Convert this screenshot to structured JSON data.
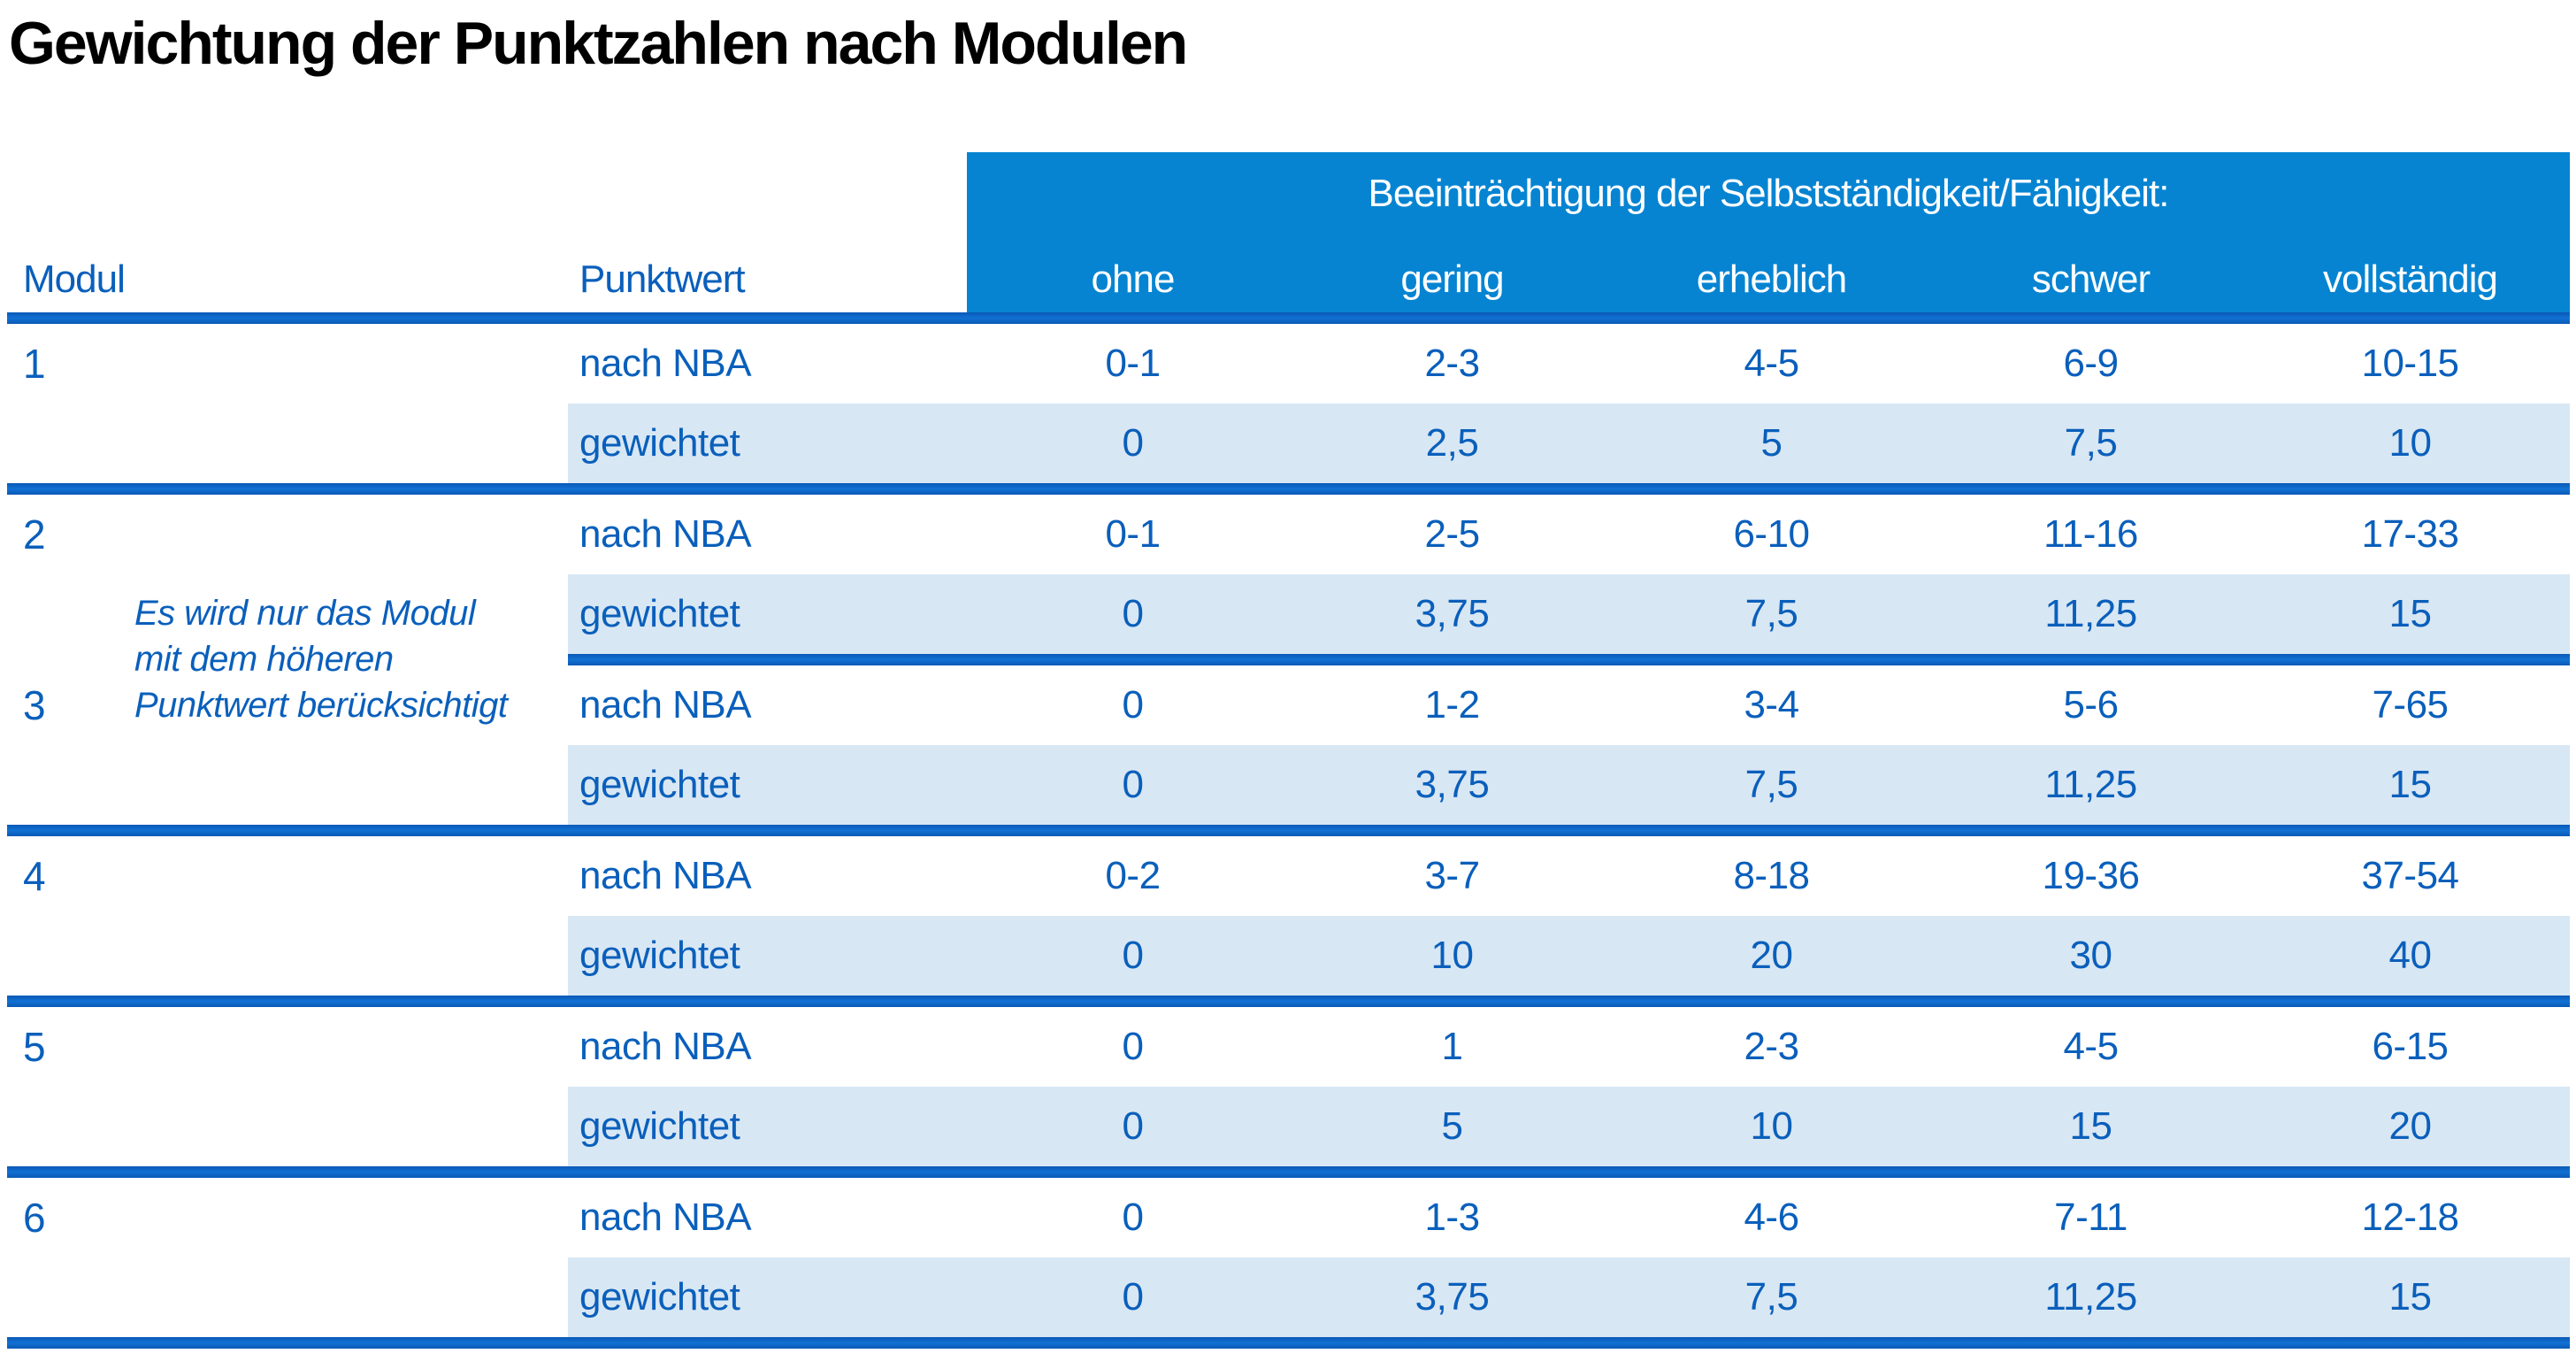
{
  "title": "Gewichtung der Punktzahlen nach Modulen",
  "colors": {
    "header_bg": "#0684D2",
    "shaded_bg": "#D8E7F4",
    "line_blue": "#0B62C5",
    "text_blue": "#0A5FBB",
    "header_text": "#FFFFFF",
    "title_color": "#000000",
    "page_bg": "#FFFFFF"
  },
  "table": {
    "group_header": "Beeinträchtigung der Selbstständigkeit/Fähigkeit:",
    "col_modul": "Modul",
    "col_punktwert": "Punktwert",
    "severity_labels": [
      "ohne",
      "gering",
      "erheblich",
      "schwer",
      "vollständig"
    ],
    "row_label_nba": "nach NBA",
    "row_label_weighted": "gewichtet",
    "note_lines": [
      "Es wird nur das Modul",
      "mit dem höheren",
      "Punktwert berücksichtigt"
    ],
    "modules": [
      {
        "number": "1",
        "nba": [
          "0-1",
          "2-3",
          "4-5",
          "6-9",
          "10-15"
        ],
        "weighted": [
          "0",
          "2,5",
          "5",
          "7,5",
          "10"
        ]
      },
      {
        "number": "2",
        "nba": [
          "0-1",
          "2-5",
          "6-10",
          "11-16",
          "17-33"
        ],
        "weighted": [
          "0",
          "3,75",
          "7,5",
          "11,25",
          "15"
        ]
      },
      {
        "number": "3",
        "nba": [
          "0",
          "1-2",
          "3-4",
          "5-6",
          "7-65"
        ],
        "weighted": [
          "0",
          "3,75",
          "7,5",
          "11,25",
          "15"
        ]
      },
      {
        "number": "4",
        "nba": [
          "0-2",
          "3-7",
          "8-18",
          "19-36",
          "37-54"
        ],
        "weighted": [
          "0",
          "10",
          "20",
          "30",
          "40"
        ]
      },
      {
        "number": "5",
        "nba": [
          "0",
          "1",
          "2-3",
          "4-5",
          "6-15"
        ],
        "weighted": [
          "0",
          "5",
          "10",
          "15",
          "20"
        ]
      },
      {
        "number": "6",
        "nba": [
          "0",
          "1-3",
          "4-6",
          "7-11",
          "12-18"
        ],
        "weighted": [
          "0",
          "3,75",
          "7,5",
          "11,25",
          "15"
        ]
      }
    ]
  }
}
